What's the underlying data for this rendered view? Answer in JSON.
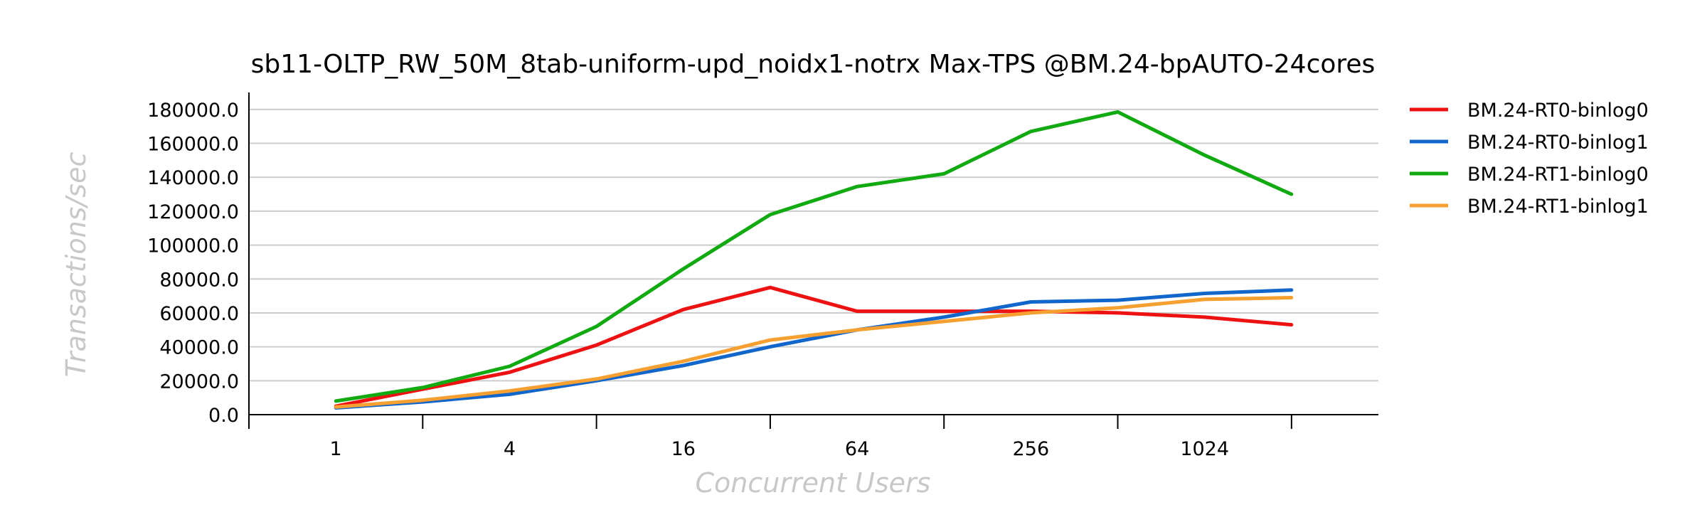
{
  "chart_data": {
    "type": "line",
    "title": "sb11-OLTP_RW_50M_8tab-uniform-upd_noidx1-notrx Max-TPS @BM.24-bpAUTO-24cores",
    "xlabel": "Concurrent Users",
    "ylabel": "Transactions/sec",
    "x": [
      1,
      2,
      4,
      8,
      16,
      32,
      64,
      128,
      256,
      512,
      1024,
      2048
    ],
    "xscale": "log2",
    "xlim": [
      0.5,
      4096
    ],
    "xticks": [
      0.5,
      2,
      8,
      32,
      128,
      512,
      2048
    ],
    "xtick_labels": [
      {
        "value": 1,
        "label": "1"
      },
      {
        "value": 4,
        "label": "4"
      },
      {
        "value": 16,
        "label": "16"
      },
      {
        "value": 64,
        "label": "64"
      },
      {
        "value": 256,
        "label": "256"
      },
      {
        "value": 1024,
        "label": "1024"
      }
    ],
    "ylim": [
      0,
      190000
    ],
    "yticks": [
      0,
      20000,
      40000,
      60000,
      80000,
      100000,
      120000,
      140000,
      160000,
      180000
    ],
    "ytick_labels": [
      "0.0",
      "20000.0",
      "40000.0",
      "60000.0",
      "80000.0",
      "100000.0",
      "120000.0",
      "140000.0",
      "160000.0",
      "180000.0"
    ],
    "grid": true,
    "legend_position": "right",
    "series": [
      {
        "name": "BM.24-RT0-binlog0",
        "color": "#ee1111",
        "values": [
          5000,
          15000,
          25000,
          41000,
          62000,
          75000,
          61000,
          61000,
          61000,
          60000,
          57500,
          53000
        ]
      },
      {
        "name": "BM.24-RT0-binlog1",
        "color": "#1166cc",
        "values": [
          4000,
          7500,
          12000,
          20000,
          29000,
          40000,
          50000,
          57500,
          66500,
          67500,
          71500,
          73500
        ]
      },
      {
        "name": "BM.24-RT1-binlog0",
        "color": "#11aa11",
        "values": [
          8000,
          16000,
          28500,
          52000,
          86000,
          118000,
          134500,
          142000,
          167000,
          178500,
          153000,
          130000
        ]
      },
      {
        "name": "BM.24-RT1-binlog1",
        "color": "#f5a030",
        "values": [
          4500,
          8500,
          14000,
          21000,
          31500,
          44000,
          50000,
          55000,
          60000,
          63000,
          68000,
          69000
        ]
      }
    ]
  }
}
